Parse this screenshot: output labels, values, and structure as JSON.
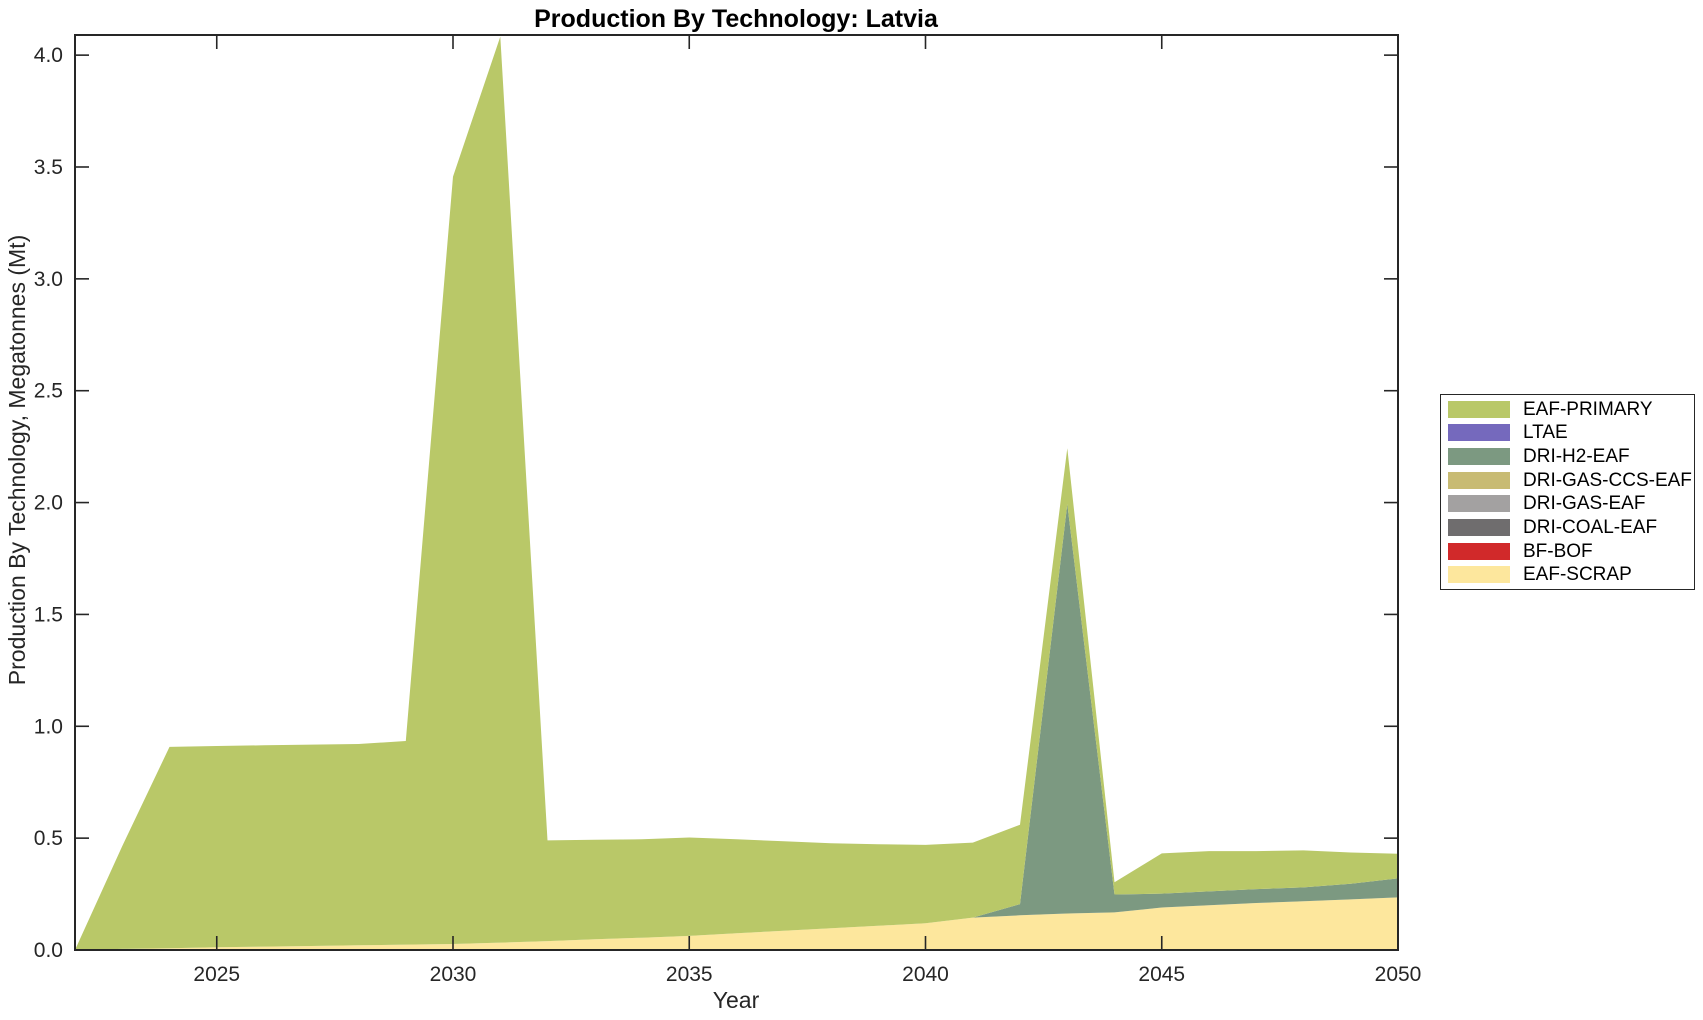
{
  "chart_data": {
    "type": "area",
    "stacked": true,
    "title": "Production By Technology: Latvia",
    "xlabel": "Year",
    "ylabel": "Production By Technology, Megatonnes (Mt)",
    "xlim": [
      2022,
      2050
    ],
    "ylim": [
      0,
      4.09
    ],
    "xticks": [
      2025,
      2030,
      2035,
      2040,
      2045,
      2050
    ],
    "yticks": [
      0,
      0.5,
      1.0,
      1.5,
      2.0,
      2.5,
      3.0,
      3.5,
      4.0
    ],
    "grid": false,
    "legend_position": "outside-right",
    "stack_order_note": "stacked bottom-to-top in reverse of series list order",
    "axis_color": "#262626",
    "background_color": "#ffffff",
    "x": [
      2022,
      2023,
      2024,
      2025,
      2026,
      2027,
      2028,
      2029,
      2030,
      2031,
      2032,
      2033,
      2034,
      2035,
      2036,
      2037,
      2038,
      2039,
      2040,
      2041,
      2042,
      2043,
      2044,
      2045,
      2046,
      2047,
      2048,
      2049,
      2050
    ],
    "series": [
      {
        "name": "EAF-PRIMARY",
        "color": "#b9c868",
        "values": [
          0,
          0.46,
          0.9,
          0.9,
          0.9,
          0.9,
          0.9,
          0.91,
          3.43,
          4.05,
          0.45,
          0.445,
          0.44,
          0.44,
          0.42,
          0.4,
          0.38,
          0.365,
          0.35,
          0.335,
          0.355,
          0.25,
          0.055,
          0.18,
          0.18,
          0.17,
          0.165,
          0.14,
          0.11
        ]
      },
      {
        "name": "LTAE",
        "color": "#7569bd",
        "values": [
          0,
          0,
          0,
          0,
          0,
          0,
          0,
          0,
          0,
          0,
          0,
          0,
          0,
          0,
          0,
          0,
          0,
          0,
          0,
          0,
          0,
          0,
          0,
          0,
          0,
          0,
          0,
          0,
          0
        ]
      },
      {
        "name": "DRI-H2-EAF",
        "color": "#7c9981",
        "values": [
          0,
          0,
          0,
          0,
          0,
          0,
          0,
          0,
          0,
          0,
          0,
          0,
          0,
          0,
          0,
          0,
          0,
          0,
          0,
          0,
          0.05,
          1.83,
          0.08,
          0.062,
          0.062,
          0.062,
          0.062,
          0.07,
          0.085
        ]
      },
      {
        "name": "DRI-GAS-CCS-EAF",
        "color": "#c8bb73",
        "values": [
          0,
          0,
          0,
          0,
          0,
          0,
          0,
          0,
          0,
          0,
          0,
          0,
          0,
          0,
          0,
          0,
          0,
          0,
          0,
          0,
          0,
          0,
          0,
          0,
          0,
          0,
          0,
          0,
          0
        ]
      },
      {
        "name": "DRI-GAS-EAF",
        "color": "#a3a1a1",
        "values": [
          0,
          0,
          0,
          0,
          0,
          0,
          0,
          0,
          0,
          0,
          0,
          0,
          0,
          0,
          0,
          0,
          0,
          0,
          0,
          0,
          0,
          0,
          0,
          0,
          0,
          0,
          0,
          0,
          0
        ]
      },
      {
        "name": "DRI-COAL-EAF",
        "color": "#6f6d6e",
        "values": [
          0,
          0,
          0,
          0,
          0,
          0,
          0,
          0,
          0,
          0,
          0,
          0,
          0,
          0,
          0,
          0,
          0,
          0,
          0,
          0,
          0,
          0,
          0,
          0,
          0,
          0,
          0,
          0,
          0
        ]
      },
      {
        "name": "BF-BOF",
        "color": "#d1292a",
        "values": [
          0,
          0,
          0,
          0,
          0,
          0,
          0,
          0,
          0,
          0,
          0,
          0,
          0,
          0,
          0,
          0,
          0,
          0,
          0,
          0,
          0,
          0,
          0,
          0,
          0,
          0,
          0,
          0,
          0
        ]
      },
      {
        "name": "EAF-SCRAP",
        "color": "#fde79d",
        "values": [
          0,
          0.005,
          0.008,
          0.012,
          0.015,
          0.018,
          0.021,
          0.024,
          0.027,
          0.033,
          0.04,
          0.048,
          0.055,
          0.063,
          0.075,
          0.086,
          0.097,
          0.108,
          0.12,
          0.145,
          0.155,
          0.163,
          0.168,
          0.19,
          0.2,
          0.21,
          0.218,
          0.226,
          0.235
        ]
      }
    ]
  }
}
